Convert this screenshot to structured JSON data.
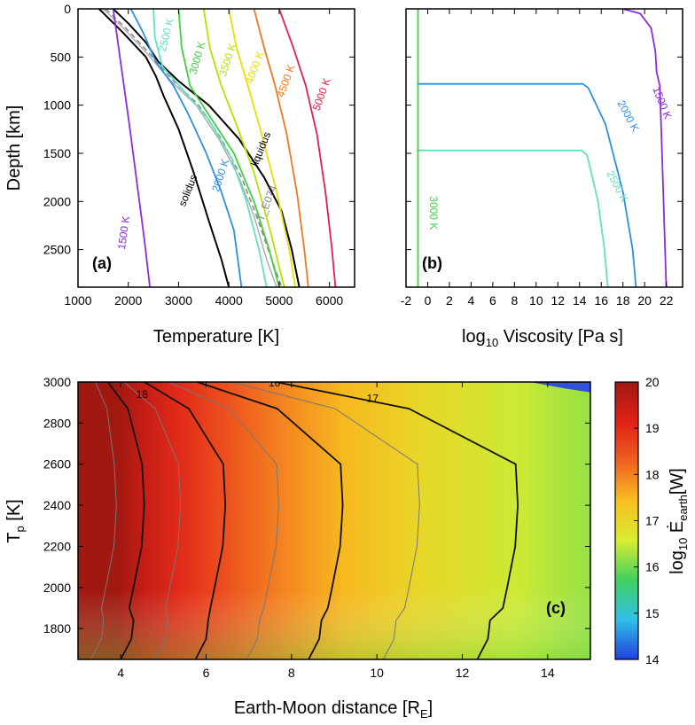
{
  "chart_data": [
    {
      "type": "line",
      "panel_label": "(a)",
      "xlabel": "Temperature [K]",
      "ylabel": "Depth [km]",
      "xlim": [
        1000,
        6500
      ],
      "ylim": [
        2890,
        0
      ],
      "xticks": [
        "1000",
        "2000",
        "3000",
        "4000",
        "5000",
        "6000"
      ],
      "yticks": [
        "0",
        "500",
        "1000",
        "1500",
        "2000",
        "2500"
      ],
      "series": [
        {
          "name": "solidus",
          "color": "#000000",
          "width": 2,
          "dash": "",
          "points": [
            [
              1420,
              0
            ],
            [
              1900,
              250
            ],
            [
              2350,
              500
            ],
            [
              2550,
              700
            ],
            [
              2700,
              900
            ],
            [
              3000,
              1250
            ],
            [
              3300,
              1700
            ],
            [
              3600,
              2200
            ],
            [
              3850,
              2600
            ],
            [
              4000,
              2890
            ]
          ]
        },
        {
          "name": "liquidus",
          "color": "#000000",
          "width": 2,
          "dash": "",
          "points": [
            [
              1700,
              0
            ],
            [
              2000,
              150
            ],
            [
              2350,
              350
            ],
            [
              2600,
              550
            ],
            [
              3000,
              750
            ],
            [
              3600,
              1000
            ],
            [
              4200,
              1350
            ],
            [
              4700,
              1750
            ],
            [
              5050,
              2100
            ],
            [
              5250,
              2500
            ],
            [
              5400,
              2890
            ]
          ]
        },
        {
          "name": "T_E074",
          "color": "#888888",
          "width": 1.6,
          "dash": "6,4",
          "points": [
            [
              1550,
              0
            ],
            [
              1950,
              200
            ],
            [
              2400,
              450
            ],
            [
              2900,
              750
            ],
            [
              3400,
              1000
            ],
            [
              3850,
              1350
            ],
            [
              4250,
              1750
            ],
            [
              4550,
              2150
            ],
            [
              4850,
              2600
            ],
            [
              5050,
              2890
            ]
          ]
        },
        {
          "name": "",
          "color": "#aaaaaa",
          "width": 1.4,
          "dash": "",
          "points": [
            [
              1500,
              0
            ],
            [
              1900,
              200
            ],
            [
              2350,
              450
            ],
            [
              2850,
              750
            ],
            [
              3350,
              1000
            ],
            [
              3800,
              1350
            ],
            [
              4200,
              1750
            ],
            [
              4500,
              2150
            ],
            [
              4750,
              2600
            ],
            [
              4950,
              2890
            ]
          ]
        },
        {
          "name": "1500 K",
          "color": "#8a2be2",
          "width": 1.8,
          "dash": "",
          "points": [
            [
              1700,
              0
            ],
            [
              1860,
              600
            ],
            [
              2020,
              1200
            ],
            [
              2170,
              1800
            ],
            [
              2320,
              2400
            ],
            [
              2430,
              2890
            ]
          ]
        },
        {
          "name": "2000 K",
          "color": "#2f8fe0",
          "width": 1.8,
          "dash": "",
          "points": [
            [
              2050,
              0
            ],
            [
              2300,
              250
            ],
            [
              2550,
              550
            ],
            [
              2900,
              800
            ],
            [
              3200,
              1100
            ],
            [
              3550,
              1500
            ],
            [
              3850,
              1900
            ],
            [
              4100,
              2300
            ],
            [
              4250,
              2890
            ]
          ]
        },
        {
          "name": "2500 K",
          "color": "#62e0c0",
          "width": 1.8,
          "dash": "",
          "points": [
            [
              2500,
              0
            ],
            [
              2530,
              300
            ],
            [
              2680,
              600
            ],
            [
              3100,
              850
            ],
            [
              3600,
              1150
            ],
            [
              4050,
              1550
            ],
            [
              4350,
              2000
            ],
            [
              4600,
              2500
            ],
            [
              4750,
              2890
            ]
          ]
        },
        {
          "name": "3000 K",
          "color": "#40d040",
          "width": 1.8,
          "dash": "",
          "points": [
            [
              3000,
              0
            ],
            [
              3060,
              400
            ],
            [
              3230,
              800
            ],
            [
              3600,
              1100
            ],
            [
              4100,
              1500
            ],
            [
              4500,
              2000
            ],
            [
              4800,
              2500
            ],
            [
              5000,
              2890
            ]
          ]
        },
        {
          "name": "3500 K",
          "color": "#b8e000",
          "width": 1.8,
          "dash": "",
          "points": [
            [
              3500,
              0
            ],
            [
              3620,
              400
            ],
            [
              3850,
              800
            ],
            [
              4150,
              1200
            ],
            [
              4500,
              1700
            ],
            [
              4820,
              2300
            ],
            [
              5100,
              2890
            ]
          ]
        },
        {
          "name": "4000 K",
          "color": "#e8e000",
          "width": 1.8,
          "dash": "",
          "points": [
            [
              4000,
              0
            ],
            [
              4150,
              400
            ],
            [
              4380,
              800
            ],
            [
              4650,
              1300
            ],
            [
              4950,
              1900
            ],
            [
              5200,
              2500
            ],
            [
              5320,
              2890
            ]
          ]
        },
        {
          "name": "4500 K",
          "color": "#f07820",
          "width": 1.8,
          "dash": "",
          "points": [
            [
              4500,
              0
            ],
            [
              4700,
              400
            ],
            [
              4920,
              800
            ],
            [
              5150,
              1300
            ],
            [
              5350,
              1900
            ],
            [
              5500,
              2500
            ],
            [
              5580,
              2890
            ]
          ]
        },
        {
          "name": "5000 K",
          "color": "#e0204a",
          "width": 1.8,
          "dash": "",
          "points": [
            [
              5000,
              0
            ],
            [
              5280,
              400
            ],
            [
              5530,
              800
            ],
            [
              5750,
              1300
            ],
            [
              5920,
              1900
            ],
            [
              6050,
              2500
            ],
            [
              6120,
              2890
            ]
          ]
        }
      ],
      "annotations": [
        {
          "text": "solidus",
          "x": 3250,
          "y": 1900,
          "rot": -68,
          "color": "#000000"
        },
        {
          "text": "liquidus",
          "x": 4700,
          "y": 1470,
          "rot": -68,
          "color": "#000000"
        },
        {
          "text": "T_E074",
          "x": 4820,
          "y": 2030,
          "rot": -68,
          "color": "#888888"
        },
        {
          "text": "1500 K",
          "x": 1980,
          "y": 2330,
          "rot": -82,
          "color": "#8a2be2"
        },
        {
          "text": "2000 K",
          "x": 3900,
          "y": 1740,
          "rot": -72,
          "color": "#2f8fe0"
        },
        {
          "text": "2500 K",
          "x": 2820,
          "y": 280,
          "rot": -76,
          "color": "#62e0c0"
        },
        {
          "text": "3000 K",
          "x": 3440,
          "y": 520,
          "rot": -74,
          "color": "#40d040"
        },
        {
          "text": "3500 K",
          "x": 4040,
          "y": 540,
          "rot": -72,
          "color": "#b8e000"
        },
        {
          "text": "4000 K",
          "x": 4580,
          "y": 620,
          "rot": -70,
          "color": "#e8e000"
        },
        {
          "text": "4500 K",
          "x": 5200,
          "y": 760,
          "rot": -70,
          "color": "#f07820"
        },
        {
          "text": "5000 K",
          "x": 5910,
          "y": 900,
          "rot": -70,
          "color": "#e0204a"
        }
      ]
    },
    {
      "type": "line",
      "panel_label": "(b)",
      "xlabel": "log",
      "xlabel_sub": "10",
      "xlabel_rest": " Viscosity [Pa s]",
      "ylabel": "",
      "xlim": [
        -2,
        23.5
      ],
      "ylim": [
        2890,
        0
      ],
      "xticks": [
        "-2",
        "0",
        "2",
        "4",
        "6",
        "8",
        "10",
        "12",
        "14",
        "16",
        "18",
        "20",
        "22"
      ],
      "series": [
        {
          "name": "1500 K",
          "color": "#8a2be2",
          "width": 1.8,
          "points": [
            [
              18,
              0
            ],
            [
              19.6,
              50
            ],
            [
              20.6,
              200
            ],
            [
              21,
              450
            ],
            [
              21.1,
              650
            ],
            [
              21.4,
              800
            ],
            [
              21.6,
              1500
            ],
            [
              21.8,
              2200
            ],
            [
              22,
              2890
            ]
          ]
        },
        {
          "name": "2000 K",
          "color": "#2f8fe0",
          "width": 1.8,
          "points": [
            [
              -1,
              780
            ],
            [
              14.3,
              780
            ],
            [
              14.8,
              820
            ],
            [
              16.4,
              1200
            ],
            [
              18,
              1900
            ],
            [
              18.9,
              2500
            ],
            [
              19.2,
              2890
            ]
          ]
        },
        {
          "name": "2500 K",
          "color": "#62e0c0",
          "width": 1.8,
          "points": [
            [
              -1,
              1470
            ],
            [
              14.2,
              1470
            ],
            [
              14.7,
              1520
            ],
            [
              15.7,
              2000
            ],
            [
              16.3,
              2500
            ],
            [
              16.6,
              2890
            ]
          ]
        },
        {
          "name": "3000 K",
          "color": "#40d040",
          "width": 1.8,
          "points": [
            [
              -0.9,
              0
            ],
            [
              -0.9,
              2890
            ]
          ]
        }
      ],
      "annotations": [
        {
          "text": "1500 K",
          "x": 21.3,
          "y": 990,
          "rot": 68,
          "color": "#8a2be2"
        },
        {
          "text": "2000 K",
          "x": 18.2,
          "y": 1130,
          "rot": 62,
          "color": "#2f8fe0"
        },
        {
          "text": "2500 K",
          "x": 17.2,
          "y": 1860,
          "rot": 62,
          "color": "#62e0c0"
        },
        {
          "text": "3000 K",
          "x": 0.2,
          "y": 2120,
          "rot": 90,
          "color": "#40d040"
        }
      ]
    },
    {
      "type": "heatmap",
      "panel_label": "(c)",
      "xlabel": "Earth-Moon distance [R",
      "xlabel_sub": "E",
      "xlabel_rest": "]",
      "ylabel": "T",
      "ylabel_sub": "p",
      "ylabel_rest": " [K]",
      "xlim": [
        3,
        15
      ],
      "ylim": [
        1650,
        3000
      ],
      "xticks": [
        "4",
        "6",
        "8",
        "10",
        "12",
        "14"
      ],
      "yticks": [
        "1800",
        "2000",
        "2200",
        "2400",
        "2600",
        "2800",
        "3000"
      ],
      "colorbar": {
        "label": "log",
        "label_sub": "10",
        "label_mid": " Ė",
        "label_sub2": "earth",
        "label_rest": "[W]",
        "range": [
          14,
          20
        ],
        "ticks": [
          "14",
          "15",
          "16",
          "17",
          "18",
          "19",
          "20"
        ],
        "stops": [
          "#2040e0",
          "#30c0e8",
          "#40d060",
          "#d8ec30",
          "#f8c020",
          "#f06020",
          "#e02018",
          "#a01810"
        ]
      },
      "contours": [
        {
          "level": 20,
          "major": false,
          "x_mid": 3.9,
          "x_low": 3.55
        },
        {
          "level": 19.5,
          "major": true,
          "x_mid": 4.55,
          "x_low": 4.25
        },
        {
          "level": 19,
          "major": false,
          "x_mid": 5.4,
          "x_low": 5.05
        },
        {
          "level": 18.5,
          "major": true,
          "x_mid": 6.45,
          "x_low": 6.0
        },
        {
          "level": 18,
          "major": false,
          "x_mid": 7.7,
          "x_low": 7.2
        },
        {
          "level": 17.5,
          "major": true,
          "x_mid": 9.2,
          "x_low": 8.65
        },
        {
          "level": 17,
          "major": false,
          "x_mid": 11.0,
          "x_low": 10.4
        },
        {
          "level": 16.5,
          "major": true,
          "x_mid": 13.3,
          "x_low": 12.6
        }
      ],
      "contour_labels": [
        {
          "text": "18",
          "x": 4.5,
          "y": 2940
        },
        {
          "text": "17",
          "x": 9.9,
          "y": 2920
        },
        {
          "text": "16",
          "x": 7.6,
          "y": 2995
        }
      ]
    }
  ]
}
